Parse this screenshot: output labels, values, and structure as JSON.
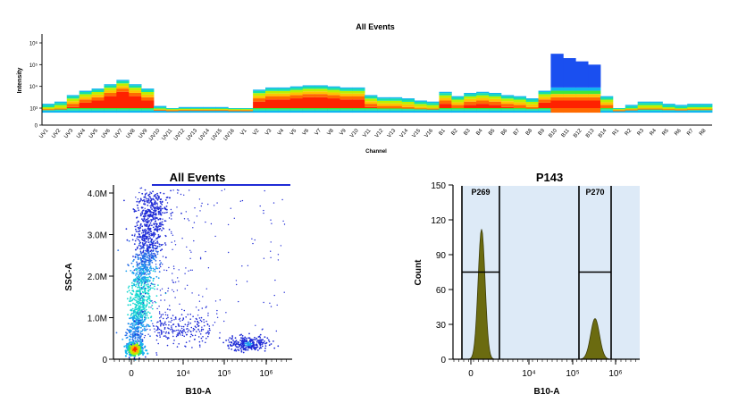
{
  "chart_data": [
    {
      "type": "heatmap",
      "title": "All Events",
      "xlabel": "Channel",
      "ylabel": "Intensity",
      "y_scale": "log",
      "y_ticks": [
        "0",
        "10³",
        "10⁴",
        "10⁵",
        "10⁶"
      ],
      "categories": [
        "UV1",
        "UV2",
        "UV3",
        "UV4",
        "UV5",
        "UV6",
        "UV7",
        "UV8",
        "UV9",
        "UV10",
        "UV11",
        "UV12",
        "UV13",
        "UV14",
        "UV15",
        "UV16",
        "V1",
        "V2",
        "V3",
        "V4",
        "V5",
        "V6",
        "V7",
        "V8",
        "V9",
        "V10",
        "V11",
        "V12",
        "V13",
        "V14",
        "V15",
        "V16",
        "B1",
        "B2",
        "B3",
        "B4",
        "B5",
        "B6",
        "B7",
        "B8",
        "B9",
        "B10",
        "B11",
        "B12",
        "B13",
        "B14",
        "R1",
        "R2",
        "R3",
        "R4",
        "R5",
        "R6",
        "R7",
        "R8"
      ],
      "peak_log_intensity": [
        3.2,
        3.3,
        3.6,
        3.8,
        3.9,
        4.1,
        4.3,
        4.1,
        3.9,
        3.1,
        3.0,
        3.05,
        3.05,
        3.05,
        3.05,
        3.0,
        3.0,
        3.85,
        3.95,
        3.95,
        4.0,
        4.05,
        4.05,
        4.0,
        3.95,
        3.95,
        3.6,
        3.5,
        3.5,
        3.45,
        3.35,
        3.3,
        3.75,
        3.55,
        3.7,
        3.75,
        3.7,
        3.6,
        3.55,
        3.45,
        3.8,
        5.5,
        5.3,
        5.15,
        5.0,
        3.55,
        3.0,
        3.15,
        3.3,
        3.3,
        3.2,
        3.15,
        3.2,
        3.2
      ]
    },
    {
      "type": "scatter",
      "title": "All Events",
      "xlabel": "B10-A",
      "ylabel": "SSC-A",
      "x_scale": "biexponential",
      "x_ticks": [
        "0",
        "10⁴",
        "10⁵",
        "10⁶"
      ],
      "y_ticks": [
        "0",
        "1.0M",
        "2.0M",
        "3.0M",
        "4.0M"
      ],
      "ylim": [
        0,
        4200000
      ],
      "populations": [
        {
          "name": "",
          "x_center": 300,
          "y_center": 250000,
          "density": "high"
        },
        {
          "name": "",
          "x_center": 2000,
          "y_center": 2400000,
          "density": "high"
        },
        {
          "name": "",
          "x_center": 300000,
          "y_center": 300000,
          "density": "medium"
        }
      ]
    },
    {
      "type": "area",
      "title": "P143",
      "xlabel": "B10-A",
      "ylabel": "Count",
      "x_scale": "biexponential",
      "x_ticks": [
        "0",
        "10⁴",
        "10⁵",
        "10⁶"
      ],
      "y_ticks": [
        "0",
        "30",
        "60",
        "90",
        "120",
        "150"
      ],
      "ylim": [
        0,
        150
      ],
      "series": [
        {
          "name": "",
          "peaks": [
            {
              "x": 300,
              "count": 112
            },
            {
              "x": 300000,
              "count": 35
            }
          ]
        }
      ],
      "gates": [
        {
          "name": "P269",
          "level": 75
        },
        {
          "name": "P270",
          "level": 75
        }
      ]
    }
  ],
  "colors": {
    "gate_shade": "#ddeaf7",
    "histogram_fill": "#6b6b10",
    "scatter_point": "#1f2bd6",
    "heat_low": "#ff2a00",
    "heat_high": "#1a4ff0"
  }
}
